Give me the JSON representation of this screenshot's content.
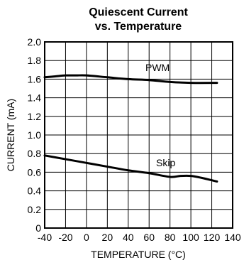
{
  "chart_data": {
    "type": "line",
    "title": "Quiescent Current",
    "subtitle": "vs. Temperature",
    "xlabel": "TEMPERATURE (°C)",
    "ylabel": "CURRENT (mA)",
    "xlim": [
      -40,
      140
    ],
    "ylim": [
      0,
      2.0
    ],
    "grid": true,
    "x_ticks": [
      "-40",
      "-20",
      "0",
      "20",
      "40",
      "60",
      "80",
      "100",
      "120",
      "140"
    ],
    "y_ticks": [
      "0",
      "0.2",
      "0.4",
      "0.6",
      "0.8",
      "1.0",
      "1.2",
      "1.4",
      "1.6",
      "1.8",
      "2.0"
    ],
    "series": [
      {
        "name": "PWM",
        "x": [
          -40,
          -30,
          -20,
          -10,
          0,
          20,
          40,
          60,
          80,
          100,
          125
        ],
        "y": [
          1.62,
          1.63,
          1.64,
          1.64,
          1.64,
          1.62,
          1.6,
          1.59,
          1.57,
          1.56,
          1.56
        ]
      },
      {
        "name": "Skip",
        "x": [
          -40,
          -20,
          0,
          20,
          40,
          60,
          80,
          90,
          100,
          110,
          125
        ],
        "y": [
          0.78,
          0.74,
          0.7,
          0.66,
          0.62,
          0.59,
          0.55,
          0.56,
          0.56,
          0.54,
          0.5
        ]
      }
    ]
  }
}
